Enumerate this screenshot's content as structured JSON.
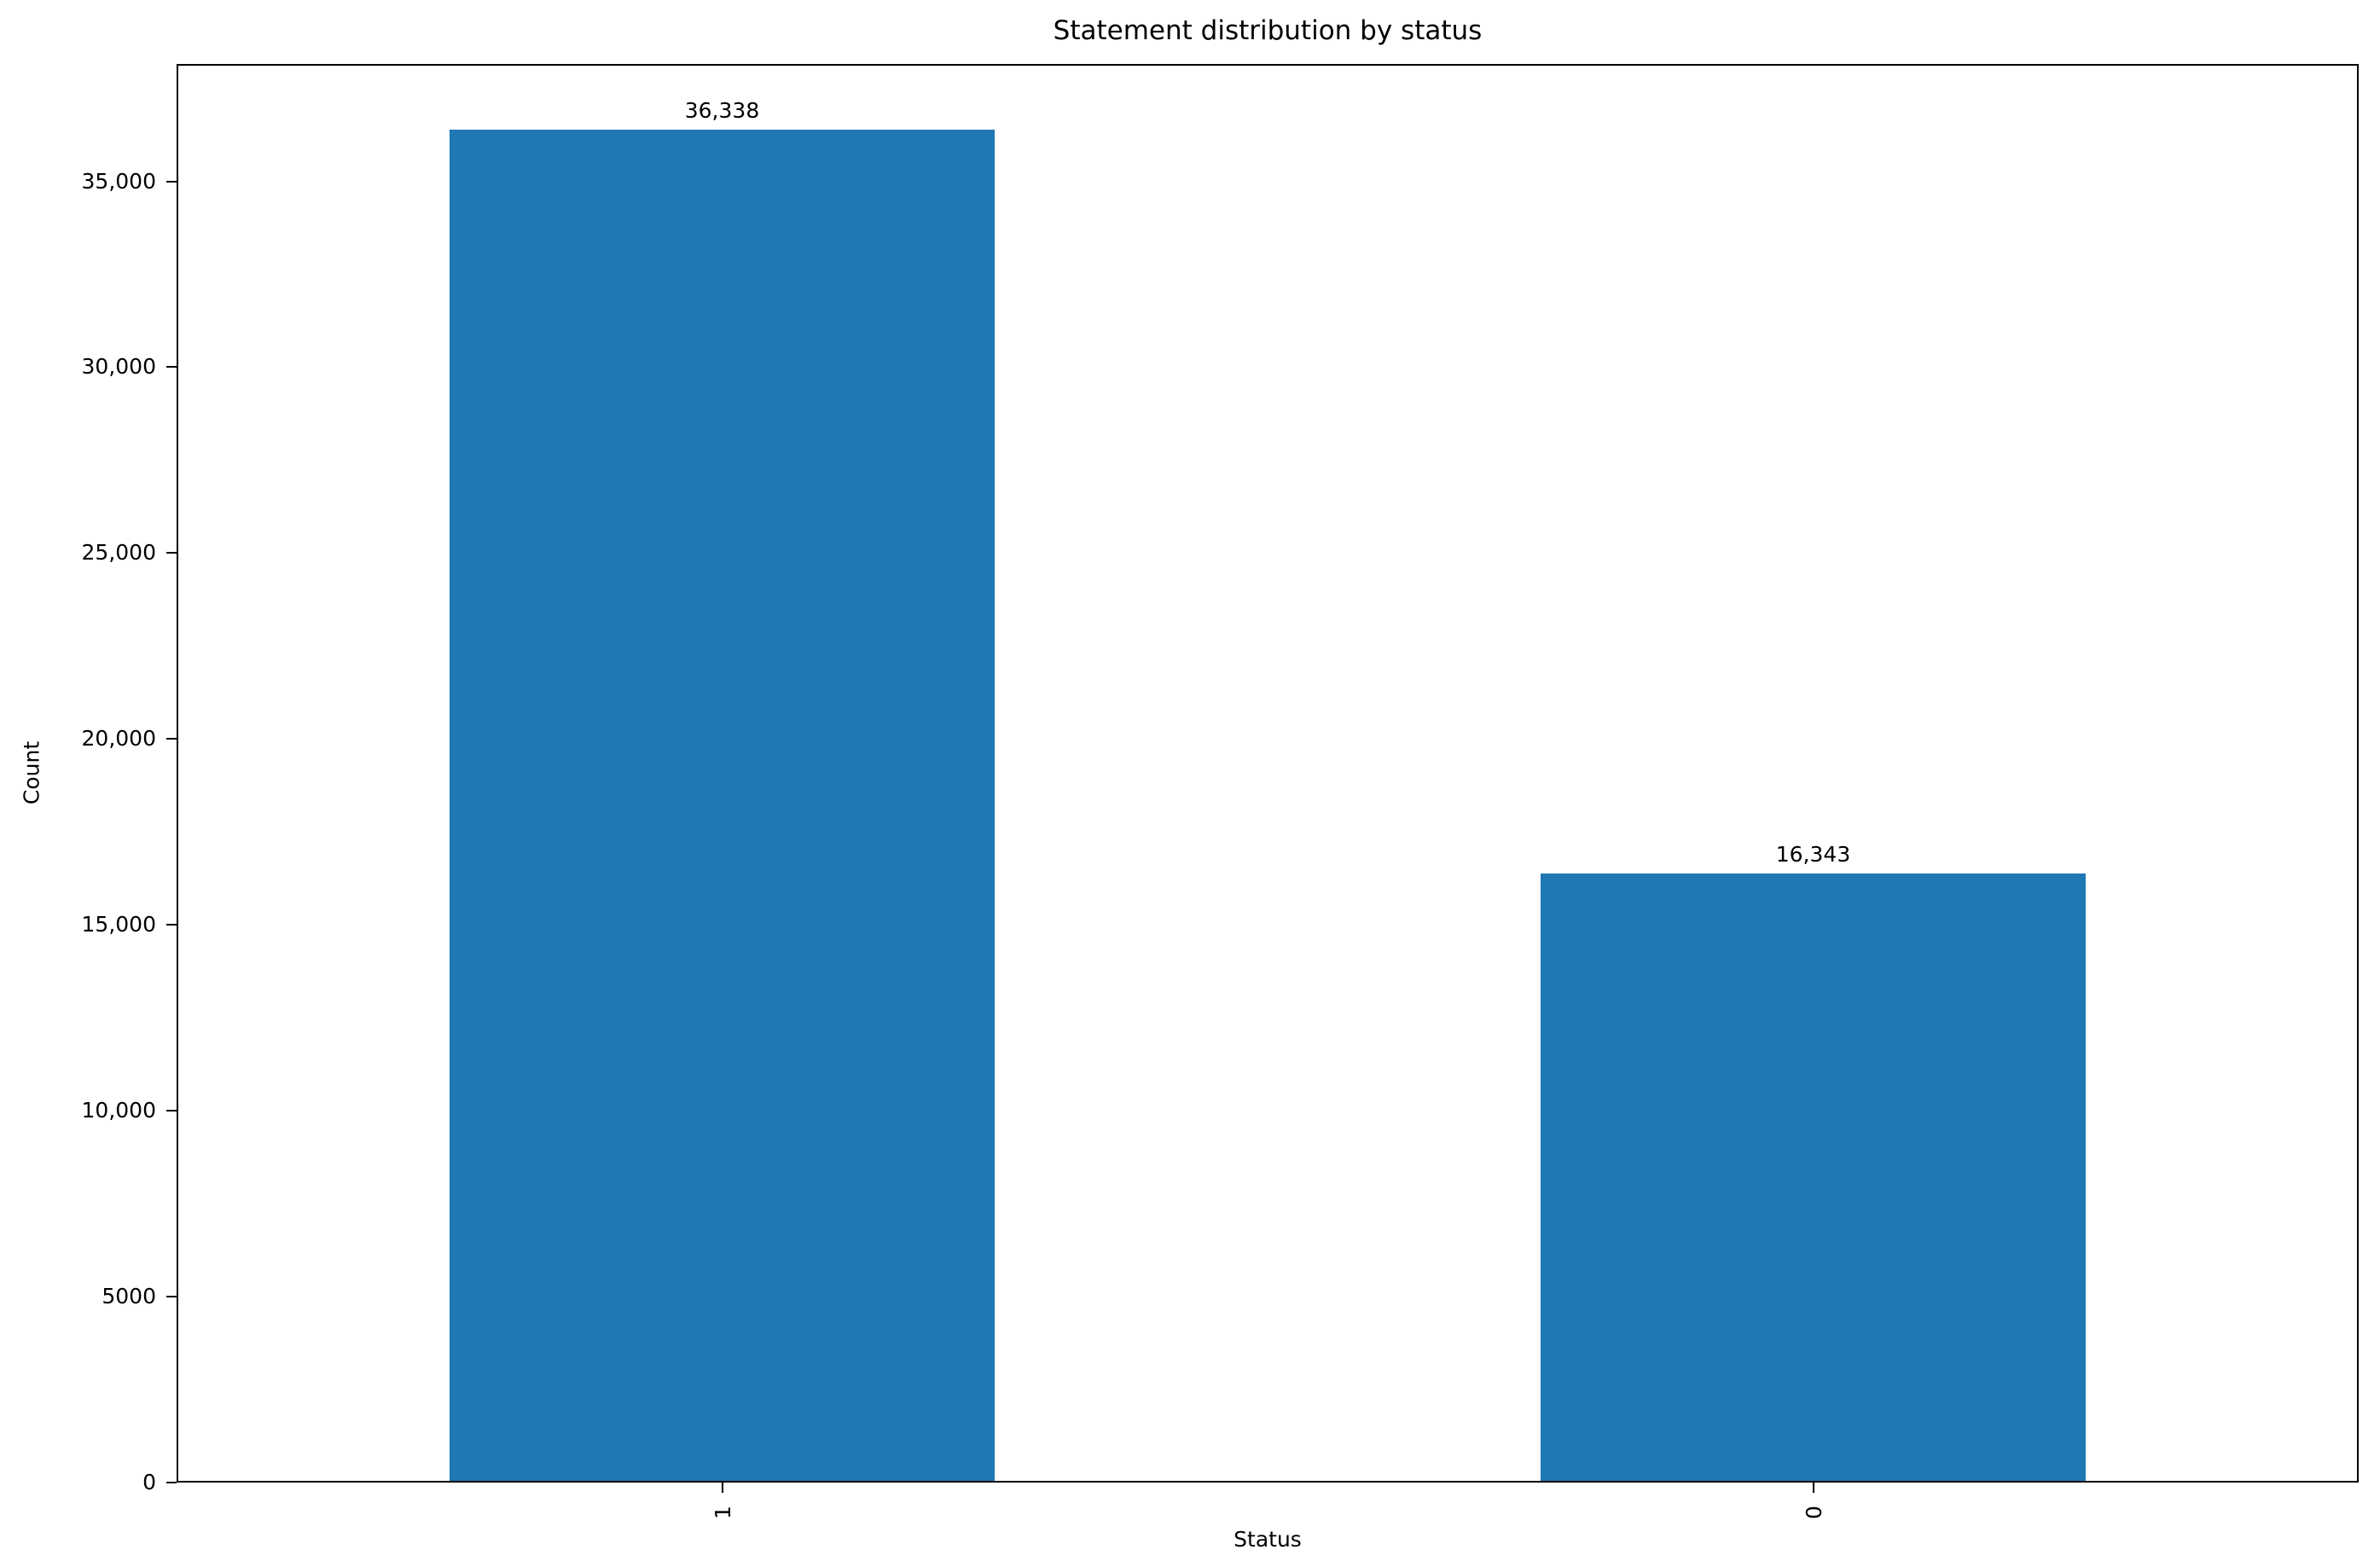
{
  "chart_data": {
    "type": "bar",
    "title": "Statement distribution by status",
    "xlabel": "Status",
    "ylabel": "Count",
    "categories": [
      "1",
      "0"
    ],
    "values": [
      36338,
      16343
    ],
    "value_labels": [
      "36,338",
      "16,343"
    ],
    "yticks": [
      0,
      5000,
      10000,
      15000,
      20000,
      25000,
      30000,
      35000
    ],
    "ytick_labels": [
      "0",
      "5000",
      "10,000",
      "15,000",
      "20,000",
      "25,000",
      "30,000",
      "35,000"
    ],
    "ylim": [
      0,
      38155
    ],
    "xtick_rotation": 90,
    "grid": false,
    "legend": null,
    "bar_color": "#1f77b4",
    "spine_color": "#000000",
    "text_color": "#000000",
    "background_color": "#ffffff"
  }
}
